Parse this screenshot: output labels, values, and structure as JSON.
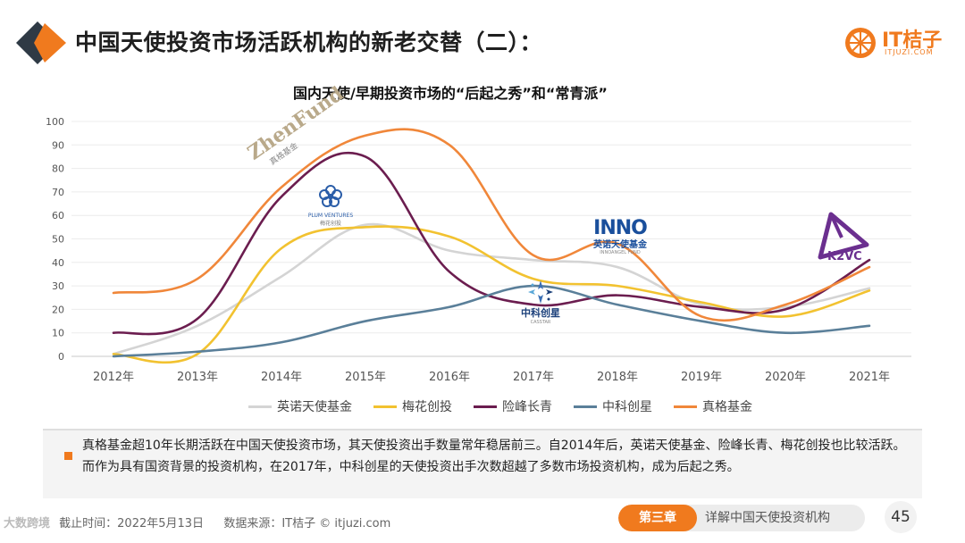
{
  "header": {
    "title": "中国天使投资市场活跃机构的新老交替（二）：",
    "icon": "orange-diamond-icon"
  },
  "logo": {
    "name": "IT桔子",
    "domain": "ITJUZI.COM"
  },
  "chart_data": {
    "type": "line",
    "title": "国内天使/早期投资市场的“后起之秀”和“常青派”",
    "categories": [
      "2012年",
      "2013年",
      "2014年",
      "2015年",
      "2016年",
      "2017年",
      "2018年",
      "2019年",
      "2020年",
      "2021年"
    ],
    "ylim": [
      0,
      100
    ],
    "yticks": [
      0,
      10,
      20,
      30,
      40,
      50,
      60,
      70,
      80,
      90,
      100
    ],
    "grid": true,
    "legend_position": "bottom",
    "series": [
      {
        "name": "英诺天使基金",
        "color": "#d4d4d4",
        "values": [
          1,
          13,
          34,
          56,
          45,
          41,
          38,
          22,
          21,
          29
        ]
      },
      {
        "name": "梅花创投",
        "color": "#f2c230",
        "values": [
          1,
          1,
          46,
          55,
          51,
          33,
          30,
          23,
          17,
          28
        ]
      },
      {
        "name": "险峰长青",
        "color": "#6b1d4f",
        "values": [
          10,
          16,
          68,
          85,
          36,
          22,
          26,
          21,
          20,
          41
        ]
      },
      {
        "name": "中科创星",
        "color": "#5a7f99",
        "values": [
          0,
          2,
          6,
          15,
          21,
          30,
          22,
          15,
          10,
          13
        ]
      },
      {
        "name": "真格基金",
        "color": "#f0873a",
        "values": [
          27,
          33,
          72,
          94,
          90,
          43,
          48,
          17,
          22,
          38
        ]
      }
    ],
    "annotations": [
      {
        "label": "ZhenFund",
        "sub": "真格基金",
        "icon": "zhenfund-logo"
      },
      {
        "label": "PLUM VENTURES",
        "sub": "梅花创投",
        "icon": "plum-flower-logo"
      },
      {
        "label": "INNO",
        "sub": "英诺天使基金",
        "sub2": "INNOANGEL FUND",
        "icon": "inno-logo"
      },
      {
        "label": "中科创星",
        "sub": "CASSTAR",
        "icon": "casstar-logo"
      },
      {
        "label": "K2VC",
        "icon": "k2vc-triangle-logo"
      }
    ]
  },
  "note": {
    "text": "真格基金超10年长期活跃在中国天使投资市场，其天使投资出手数量常年稳居前三。自2014年后，英诺天使基金、险峰长青、梅花创投也比较活跃。而作为具有国资背景的投资机构，在2017年，中科创星的天使投资出手次数超越了多数市场投资机构，成为后起之秀。"
  },
  "footer": {
    "watermark": "大数跨境",
    "date": "截止时间：2022年5月13日",
    "source": "数据来源：IT桔子 © itjuzi.com",
    "chapter_badge": "第三章",
    "chapter_title": "详解中国天使投资机构",
    "page_number": "45"
  }
}
